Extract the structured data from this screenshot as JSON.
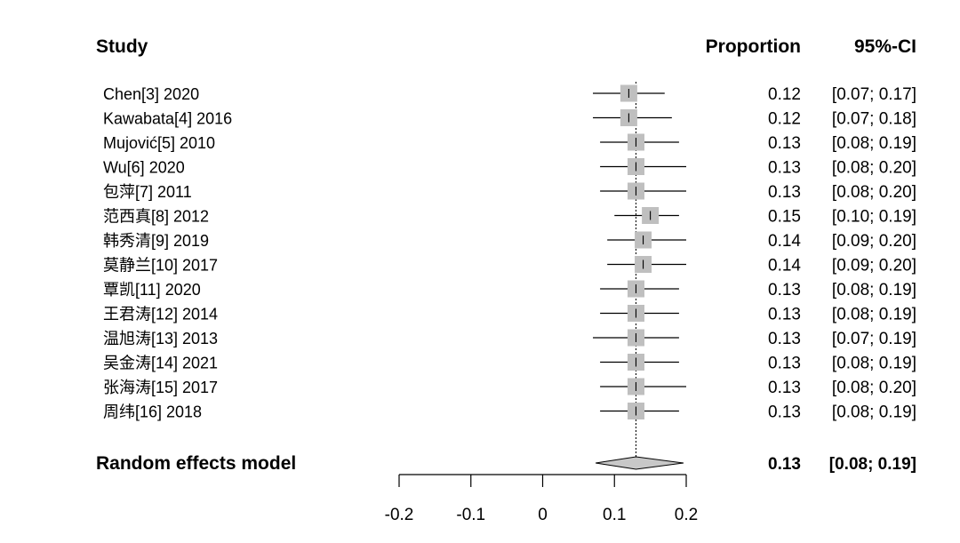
{
  "chart_data": {
    "type": "forest",
    "headers": {
      "study": "Study",
      "proportion": "Proportion",
      "ci": "95%-CI"
    },
    "studies": [
      {
        "label": "Chen[3] 2020",
        "value": 0.12,
        "lower": 0.07,
        "upper": 0.17,
        "proportion_text": "0.12",
        "ci_text": "[0.07; 0.17]"
      },
      {
        "label": "Kawabata[4] 2016",
        "value": 0.12,
        "lower": 0.07,
        "upper": 0.18,
        "proportion_text": "0.12",
        "ci_text": "[0.07; 0.18]"
      },
      {
        "label": "Mujović[5] 2010",
        "value": 0.13,
        "lower": 0.08,
        "upper": 0.19,
        "proportion_text": "0.13",
        "ci_text": "[0.08; 0.19]"
      },
      {
        "label": "Wu[6] 2020",
        "value": 0.13,
        "lower": 0.08,
        "upper": 0.2,
        "proportion_text": "0.13",
        "ci_text": "[0.08; 0.20]"
      },
      {
        "label": "包萍[7] 2011",
        "value": 0.13,
        "lower": 0.08,
        "upper": 0.2,
        "proportion_text": "0.13",
        "ci_text": "[0.08; 0.20]"
      },
      {
        "label": "范西真[8] 2012",
        "value": 0.15,
        "lower": 0.1,
        "upper": 0.19,
        "proportion_text": "0.15",
        "ci_text": "[0.10; 0.19]"
      },
      {
        "label": "韩秀清[9] 2019",
        "value": 0.14,
        "lower": 0.09,
        "upper": 0.2,
        "proportion_text": "0.14",
        "ci_text": "[0.09; 0.20]"
      },
      {
        "label": "莫静兰[10] 2017",
        "value": 0.14,
        "lower": 0.09,
        "upper": 0.2,
        "proportion_text": "0.14",
        "ci_text": "[0.09; 0.20]"
      },
      {
        "label": "覃凯[11] 2020",
        "value": 0.13,
        "lower": 0.08,
        "upper": 0.19,
        "proportion_text": "0.13",
        "ci_text": "[0.08; 0.19]"
      },
      {
        "label": "王君涛[12] 2014",
        "value": 0.13,
        "lower": 0.08,
        "upper": 0.19,
        "proportion_text": "0.13",
        "ci_text": "[0.08; 0.19]"
      },
      {
        "label": "温旭涛[13] 2013",
        "value": 0.13,
        "lower": 0.07,
        "upper": 0.19,
        "proportion_text": "0.13",
        "ci_text": "[0.07; 0.19]"
      },
      {
        "label": "吴金涛[14] 2021",
        "value": 0.13,
        "lower": 0.08,
        "upper": 0.19,
        "proportion_text": "0.13",
        "ci_text": "[0.08; 0.19]"
      },
      {
        "label": "张海涛[15] 2017",
        "value": 0.13,
        "lower": 0.08,
        "upper": 0.2,
        "proportion_text": "0.13",
        "ci_text": "[0.08; 0.20]"
      },
      {
        "label": "周纬[16] 2018",
        "value": 0.13,
        "lower": 0.08,
        "upper": 0.19,
        "proportion_text": "0.13",
        "ci_text": "[0.08; 0.19]"
      }
    ],
    "pooled": {
      "label": "Random effects model",
      "value": 0.13,
      "lower": 0.08,
      "upper": 0.19,
      "proportion_text": "0.13",
      "ci_text": "[0.08; 0.19]"
    },
    "x_axis": {
      "ticks": [
        -0.2,
        -0.1,
        0,
        0.1,
        0.2
      ],
      "tick_labels": [
        "-0.2",
        "-0.1",
        "0",
        "0.1",
        "0.2"
      ],
      "xlim": [
        -0.2,
        0.2
      ]
    },
    "reference_line": 0.13,
    "colors": {
      "box": "#bfbfbf",
      "diamond": "#c8c8c8",
      "line": "#000000"
    }
  }
}
